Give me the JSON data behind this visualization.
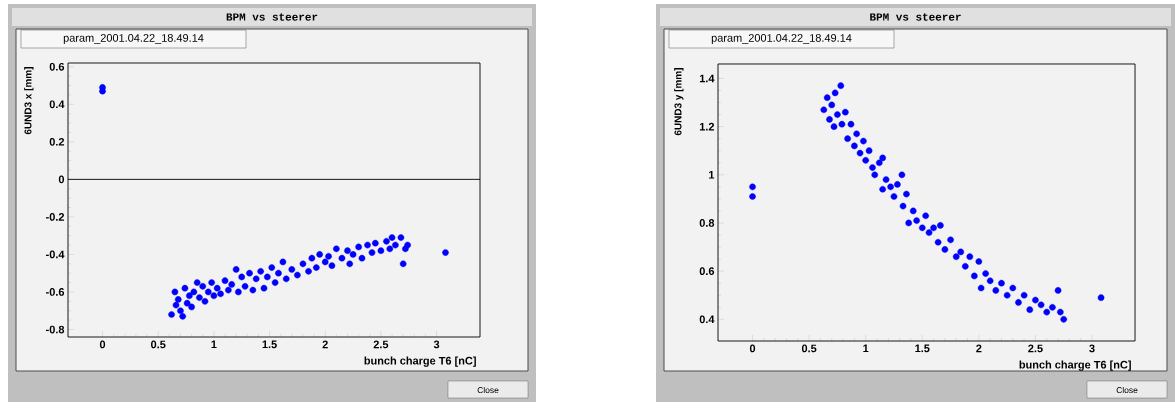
{
  "chart_data": [
    {
      "type": "scatter",
      "title": "BPM vs steerer",
      "subtitle": "param_2001.04.22_18.49.14",
      "xlabel": "bunch charge T6 [nC]",
      "ylabel": "6UND3 x [mm]",
      "annotations": [
        "Close"
      ],
      "xlim": [
        -0.31,
        3.39
      ],
      "ylim": [
        -0.84,
        0.62
      ],
      "xticks": [
        0,
        0.5,
        1,
        1.5,
        2,
        2.5,
        3
      ],
      "yticks": [
        -0.8,
        -0.6,
        -0.4,
        -0.2,
        0,
        0.2,
        0.4,
        0.6
      ],
      "ref_lines": [
        {
          "axis": "y",
          "value": 0,
          "color": "#000000"
        }
      ],
      "series": [
        {
          "color": "#0000ff",
          "x": [
            0,
            0,
            0.62,
            0.65,
            0.66,
            0.68,
            0.7,
            0.72,
            0.74,
            0.76,
            0.78,
            0.8,
            0.82,
            0.85,
            0.87,
            0.9,
            0.92,
            0.95,
            0.98,
            1.0,
            1.03,
            1.06,
            1.1,
            1.13,
            1.16,
            1.2,
            1.22,
            1.25,
            1.28,
            1.32,
            1.35,
            1.38,
            1.42,
            1.45,
            1.48,
            1.52,
            1.55,
            1.58,
            1.62,
            1.65,
            1.7,
            1.75,
            1.8,
            1.85,
            1.88,
            1.92,
            1.95,
            2.0,
            2.03,
            2.06,
            2.1,
            2.15,
            2.2,
            2.22,
            2.25,
            2.3,
            2.33,
            2.38,
            2.42,
            2.45,
            2.5,
            2.55,
            2.58,
            2.6,
            2.63,
            2.68,
            2.7,
            2.72,
            2.74,
            3.08
          ],
          "values": [
            0.49,
            0.47,
            -0.72,
            -0.6,
            -0.67,
            -0.64,
            -0.7,
            -0.73,
            -0.58,
            -0.66,
            -0.62,
            -0.68,
            -0.6,
            -0.55,
            -0.63,
            -0.57,
            -0.65,
            -0.6,
            -0.55,
            -0.62,
            -0.58,
            -0.61,
            -0.54,
            -0.59,
            -0.56,
            -0.48,
            -0.6,
            -0.52,
            -0.57,
            -0.5,
            -0.59,
            -0.53,
            -0.49,
            -0.58,
            -0.52,
            -0.47,
            -0.55,
            -0.5,
            -0.44,
            -0.53,
            -0.48,
            -0.51,
            -0.45,
            -0.49,
            -0.42,
            -0.47,
            -0.4,
            -0.44,
            -0.41,
            -0.46,
            -0.37,
            -0.42,
            -0.38,
            -0.45,
            -0.4,
            -0.36,
            -0.42,
            -0.35,
            -0.39,
            -0.34,
            -0.38,
            -0.33,
            -0.37,
            -0.31,
            -0.35,
            -0.31,
            -0.45,
            -0.37,
            -0.35,
            -0.39
          ]
        }
      ]
    },
    {
      "type": "scatter",
      "title": "BPM vs steerer",
      "subtitle": "param_2001.04.22_18.49.14",
      "xlabel": "bunch charge T6 [nC]",
      "ylabel": "6UND3 y [mm]",
      "annotations": [
        "Close"
      ],
      "xlim": [
        -0.305,
        3.38
      ],
      "ylim": [
        0.31,
        1.46
      ],
      "xticks": [
        0,
        0.5,
        1,
        1.5,
        2,
        2.5,
        3
      ],
      "yticks": [
        0.4,
        0.6,
        0.8,
        1,
        1.2,
        1.4
      ],
      "series": [
        {
          "color": "#0000ff",
          "x": [
            0,
            0,
            0.63,
            0.66,
            0.68,
            0.7,
            0.72,
            0.73,
            0.75,
            0.78,
            0.79,
            0.82,
            0.84,
            0.87,
            0.9,
            0.92,
            0.95,
            0.98,
            1.0,
            1.03,
            1.06,
            1.08,
            1.12,
            1.15,
            1.15,
            1.18,
            1.22,
            1.25,
            1.28,
            1.32,
            1.33,
            1.36,
            1.38,
            1.42,
            1.45,
            1.5,
            1.53,
            1.56,
            1.6,
            1.64,
            1.66,
            1.7,
            1.75,
            1.8,
            1.84,
            1.88,
            1.92,
            1.96,
            2.0,
            2.02,
            2.06,
            2.1,
            2.15,
            2.2,
            2.25,
            2.3,
            2.35,
            2.4,
            2.45,
            2.5,
            2.55,
            2.6,
            2.65,
            2.7,
            2.72,
            2.75,
            3.08
          ],
          "values": [
            0.95,
            0.91,
            1.27,
            1.32,
            1.23,
            1.29,
            1.2,
            1.34,
            1.25,
            1.37,
            1.21,
            1.26,
            1.15,
            1.21,
            1.12,
            1.17,
            1.09,
            1.14,
            1.06,
            1.1,
            1.03,
            1.0,
            1.05,
            0.94,
            1.07,
            0.98,
            0.95,
            0.91,
            0.96,
            1.0,
            0.87,
            0.92,
            0.8,
            0.85,
            0.81,
            0.78,
            0.83,
            0.76,
            0.78,
            0.72,
            0.79,
            0.69,
            0.73,
            0.66,
            0.68,
            0.62,
            0.66,
            0.58,
            0.64,
            0.53,
            0.59,
            0.56,
            0.52,
            0.55,
            0.5,
            0.53,
            0.47,
            0.5,
            0.44,
            0.48,
            0.46,
            0.43,
            0.45,
            0.52,
            0.43,
            0.4,
            0.49
          ]
        }
      ]
    }
  ]
}
